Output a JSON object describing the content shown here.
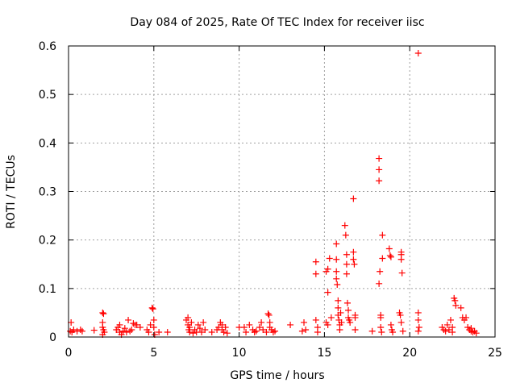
{
  "chart_data": {
    "type": "scatter",
    "title": "Day 084 of 2025, Rate Of TEC Index for receiver iisc",
    "xlabel": "GPS time / hours",
    "ylabel": "ROTI / TECUs",
    "xlim": [
      0,
      25
    ],
    "ylim": [
      0,
      0.6
    ],
    "grid": true,
    "marker": "plus",
    "x_ticks": [
      0,
      5,
      10,
      15,
      20,
      25
    ],
    "x_tick_labels": [
      "0",
      "5",
      "10",
      "15",
      "20",
      "25"
    ],
    "y_ticks": [
      0,
      0.1,
      0.2,
      0.3,
      0.4,
      0.5,
      0.6
    ],
    "y_tick_labels": [
      "0",
      "0.1",
      "0.2",
      "0.3",
      "0.4",
      "0.5",
      "0.6"
    ],
    "colors": {
      "points": "#ff0000",
      "grid": "#a0a0a0",
      "axis": "#000000"
    },
    "series": [
      {
        "name": "ROTI",
        "points": [
          [
            0.1,
            0.012
          ],
          [
            0.15,
            0.03
          ],
          [
            0.2,
            0.01
          ],
          [
            0.3,
            0.015
          ],
          [
            0.5,
            0.012
          ],
          [
            0.7,
            0.015
          ],
          [
            0.8,
            0.012
          ],
          [
            1.5,
            0.014
          ],
          [
            2.0,
            0.05
          ],
          [
            2.05,
            0.048
          ],
          [
            2.0,
            0.03
          ],
          [
            2.0,
            0.02
          ],
          [
            2.05,
            0.015
          ],
          [
            2.1,
            0.01
          ],
          [
            2.0,
            0.005
          ],
          [
            2.8,
            0.015
          ],
          [
            2.9,
            0.02
          ],
          [
            3.0,
            0.025
          ],
          [
            3.0,
            0.01
          ],
          [
            3.1,
            0.005
          ],
          [
            3.2,
            0.012
          ],
          [
            3.3,
            0.018
          ],
          [
            3.4,
            0.01
          ],
          [
            3.5,
            0.035
          ],
          [
            3.6,
            0.012
          ],
          [
            3.7,
            0.015
          ],
          [
            3.8,
            0.028
          ],
          [
            3.9,
            0.025
          ],
          [
            4.0,
            0.025
          ],
          [
            4.2,
            0.02
          ],
          [
            4.6,
            0.015
          ],
          [
            4.7,
            0.01
          ],
          [
            4.8,
            0.025
          ],
          [
            4.9,
            0.06
          ],
          [
            4.95,
            0.058
          ],
          [
            5.0,
            0.035
          ],
          [
            5.0,
            0.02
          ],
          [
            5.05,
            0.005
          ],
          [
            5.3,
            0.01
          ],
          [
            5.8,
            0.01
          ],
          [
            6.9,
            0.035
          ],
          [
            7.0,
            0.04
          ],
          [
            7.0,
            0.025
          ],
          [
            7.05,
            0.015
          ],
          [
            7.1,
            0.01
          ],
          [
            7.1,
            0.02
          ],
          [
            7.2,
            0.03
          ],
          [
            7.3,
            0.008
          ],
          [
            7.4,
            0.015
          ],
          [
            7.5,
            0.01
          ],
          [
            7.6,
            0.025
          ],
          [
            7.7,
            0.018
          ],
          [
            7.8,
            0.01
          ],
          [
            7.9,
            0.03
          ],
          [
            8.0,
            0.015
          ],
          [
            8.4,
            0.01
          ],
          [
            8.7,
            0.015
          ],
          [
            8.8,
            0.02
          ],
          [
            8.9,
            0.03
          ],
          [
            9.0,
            0.025
          ],
          [
            9.0,
            0.015
          ],
          [
            9.1,
            0.01
          ],
          [
            9.2,
            0.02
          ],
          [
            9.3,
            0.008
          ],
          [
            10.0,
            0.02
          ],
          [
            10.3,
            0.02
          ],
          [
            10.4,
            0.01
          ],
          [
            10.6,
            0.025
          ],
          [
            10.8,
            0.015
          ],
          [
            10.9,
            0.01
          ],
          [
            11.0,
            0.012
          ],
          [
            11.2,
            0.02
          ],
          [
            11.3,
            0.03
          ],
          [
            11.4,
            0.015
          ],
          [
            11.6,
            0.01
          ],
          [
            11.7,
            0.048
          ],
          [
            11.75,
            0.045
          ],
          [
            11.8,
            0.03
          ],
          [
            11.8,
            0.02
          ],
          [
            11.9,
            0.015
          ],
          [
            12.0,
            0.01
          ],
          [
            12.1,
            0.012
          ],
          [
            13.0,
            0.025
          ],
          [
            13.7,
            0.012
          ],
          [
            13.8,
            0.03
          ],
          [
            13.9,
            0.015
          ],
          [
            14.5,
            0.155
          ],
          [
            14.5,
            0.13
          ],
          [
            14.5,
            0.035
          ],
          [
            14.6,
            0.02
          ],
          [
            14.6,
            0.01
          ],
          [
            15.1,
            0.135
          ],
          [
            15.1,
            0.03
          ],
          [
            15.2,
            0.14
          ],
          [
            15.2,
            0.092
          ],
          [
            15.2,
            0.025
          ],
          [
            15.3,
            0.162
          ],
          [
            15.4,
            0.04
          ],
          [
            15.7,
            0.192
          ],
          [
            15.7,
            0.16
          ],
          [
            15.7,
            0.135
          ],
          [
            15.7,
            0.12
          ],
          [
            15.75,
            0.108
          ],
          [
            15.8,
            0.075
          ],
          [
            15.8,
            0.06
          ],
          [
            15.8,
            0.045
          ],
          [
            15.85,
            0.035
          ],
          [
            15.9,
            0.025
          ],
          [
            15.9,
            0.015
          ],
          [
            15.95,
            0.05
          ],
          [
            16.0,
            0.03
          ],
          [
            16.2,
            0.23
          ],
          [
            16.25,
            0.21
          ],
          [
            16.3,
            0.17
          ],
          [
            16.3,
            0.15
          ],
          [
            16.3,
            0.13
          ],
          [
            16.35,
            0.07
          ],
          [
            16.4,
            0.055
          ],
          [
            16.4,
            0.04
          ],
          [
            16.45,
            0.035
          ],
          [
            16.5,
            0.03
          ],
          [
            16.7,
            0.285
          ],
          [
            16.7,
            0.175
          ],
          [
            16.7,
            0.16
          ],
          [
            16.75,
            0.15
          ],
          [
            16.8,
            0.045
          ],
          [
            16.8,
            0.04
          ],
          [
            16.8,
            0.015
          ],
          [
            17.8,
            0.012
          ],
          [
            18.2,
            0.368
          ],
          [
            18.2,
            0.345
          ],
          [
            18.2,
            0.322
          ],
          [
            18.25,
            0.135
          ],
          [
            18.2,
            0.11
          ],
          [
            18.3,
            0.045
          ],
          [
            18.3,
            0.04
          ],
          [
            18.3,
            0.02
          ],
          [
            18.4,
            0.21
          ],
          [
            18.4,
            0.162
          ],
          [
            18.35,
            0.01
          ],
          [
            18.8,
            0.182
          ],
          [
            18.85,
            0.168
          ],
          [
            18.9,
            0.165
          ],
          [
            18.9,
            0.025
          ],
          [
            18.95,
            0.015
          ],
          [
            19.0,
            0.01
          ],
          [
            19.4,
            0.05
          ],
          [
            19.45,
            0.045
          ],
          [
            19.5,
            0.175
          ],
          [
            19.5,
            0.17
          ],
          [
            19.5,
            0.16
          ],
          [
            19.55,
            0.132
          ],
          [
            19.5,
            0.03
          ],
          [
            19.6,
            0.012
          ],
          [
            20.5,
            0.585
          ],
          [
            20.5,
            0.05
          ],
          [
            20.5,
            0.035
          ],
          [
            20.55,
            0.02
          ],
          [
            20.5,
            0.012
          ],
          [
            21.9,
            0.02
          ],
          [
            22.0,
            0.015
          ],
          [
            22.1,
            0.012
          ],
          [
            22.2,
            0.025
          ],
          [
            22.3,
            0.015
          ],
          [
            22.4,
            0.035
          ],
          [
            22.5,
            0.02
          ],
          [
            22.5,
            0.01
          ],
          [
            22.6,
            0.08
          ],
          [
            22.65,
            0.075
          ],
          [
            22.7,
            0.065
          ],
          [
            23.0,
            0.06
          ],
          [
            23.1,
            0.04
          ],
          [
            23.2,
            0.035
          ],
          [
            23.3,
            0.04
          ],
          [
            23.4,
            0.02
          ],
          [
            23.5,
            0.015
          ],
          [
            23.6,
            0.012
          ],
          [
            23.6,
            0.018
          ],
          [
            23.7,
            0.01
          ],
          [
            23.8,
            0.012
          ],
          [
            23.9,
            0.008
          ]
        ]
      }
    ]
  }
}
